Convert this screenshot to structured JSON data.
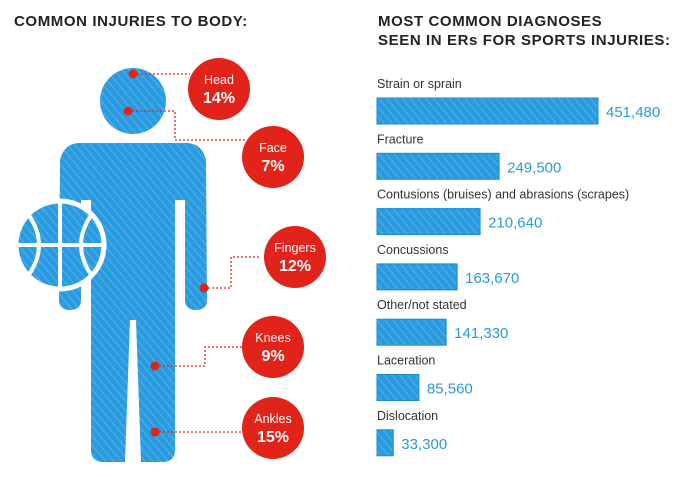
{
  "left": {
    "title": "COMMON INJURIES TO BODY:",
    "badges": [
      {
        "label": "Head",
        "pct": "14%"
      },
      {
        "label": "Face",
        "pct": "7%"
      },
      {
        "label": "Fingers",
        "pct": "12%"
      },
      {
        "label": "Knees",
        "pct": "9%"
      },
      {
        "label": "Ankles",
        "pct": "15%"
      }
    ]
  },
  "right": {
    "title_line1": "MOST COMMON DIAGNOSES",
    "title_line2": "SEEN IN ERs FOR SPORTS INJURIES:"
  },
  "colors": {
    "body": "#2b9be0",
    "badge": "#e2231a",
    "bar": "#2b9be0",
    "value_text": "#2a9ad8",
    "heading": "#222222"
  },
  "chart_data": [
    {
      "type": "bar",
      "orientation": "horizontal",
      "title": "COMMON INJURIES TO BODY:",
      "categories": [
        "Head",
        "Face",
        "Fingers",
        "Knees",
        "Ankles"
      ],
      "values": [
        14,
        7,
        12,
        9,
        15
      ],
      "unit": "%"
    },
    {
      "type": "bar",
      "orientation": "horizontal",
      "title": "MOST COMMON DIAGNOSES SEEN IN ERs FOR SPORTS INJURIES:",
      "categories": [
        "Strain or sprain",
        "Fracture",
        "Contusions (bruises) and abrasions (scrapes)",
        "Concussions",
        "Other/not stated",
        "Laceration",
        "Dislocation"
      ],
      "values": [
        451480,
        249500,
        210640,
        163670,
        141330,
        85560,
        33300
      ],
      "value_labels": [
        "451,480",
        "249,500",
        "210,640",
        "163,670",
        "141,330",
        "85,560",
        "33,300"
      ],
      "xlim": [
        0,
        451480
      ],
      "grid": false,
      "legend": "none"
    }
  ]
}
